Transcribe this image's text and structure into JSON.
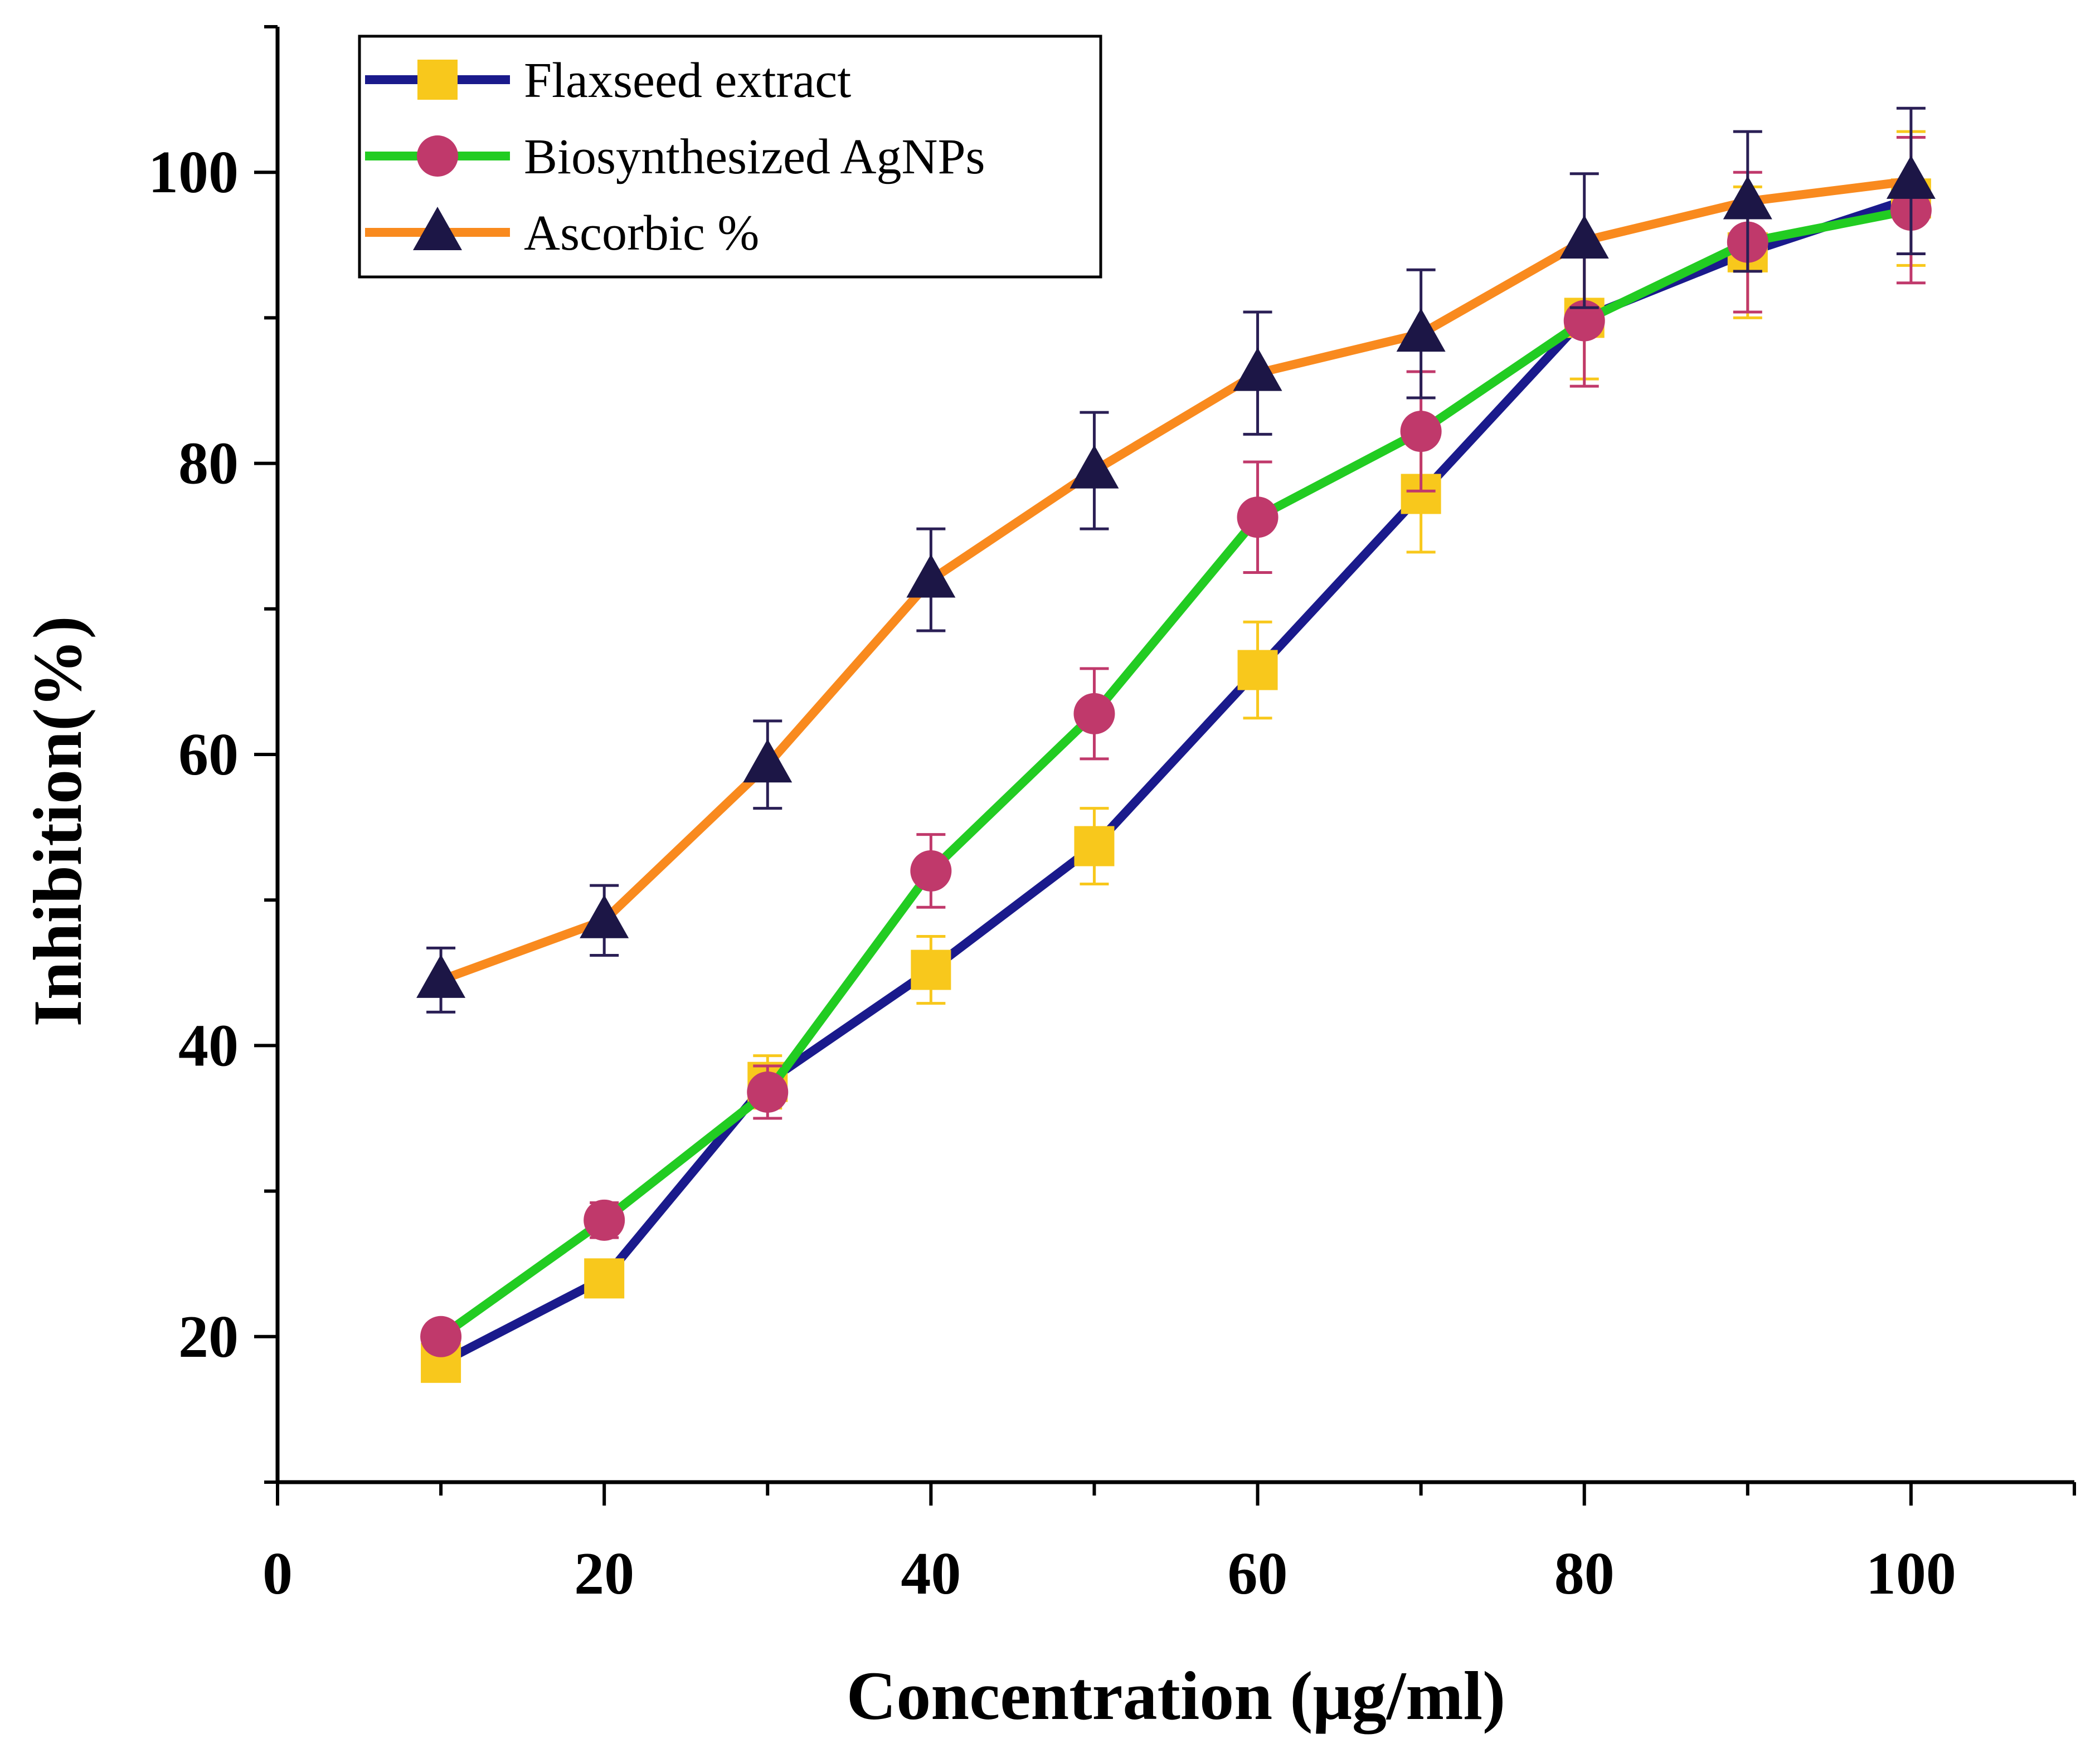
{
  "chart_data": {
    "type": "line",
    "xlabel": "Concentration (μg/ml)",
    "ylabel": "Inhibition(%)",
    "xlim": [
      0,
      110
    ],
    "ylim": [
      10,
      110
    ],
    "x_ticks": [
      0,
      20,
      40,
      60,
      80,
      100
    ],
    "y_ticks": [
      20,
      40,
      60,
      80,
      100
    ],
    "grid": false,
    "legend_position": "top-left",
    "x": [
      10,
      20,
      30,
      40,
      50,
      60,
      70,
      80,
      90,
      100
    ],
    "series": [
      {
        "name": "Flaxseed extract",
        "line_color": "#1a1a8c",
        "marker": "square",
        "marker_color": "#f8c81c",
        "error_color": "#f8c81c",
        "values": [
          18.2,
          24.0,
          37.5,
          45.2,
          53.7,
          65.8,
          77.9,
          90.0,
          94.5,
          98.2
        ],
        "errors": [
          0.8,
          1.0,
          1.8,
          2.3,
          2.6,
          3.3,
          4.0,
          4.2,
          4.5,
          4.6
        ]
      },
      {
        "name": "Biosynthesized AgNPs",
        "line_color": "#22cc22",
        "marker": "circle",
        "marker_color": "#c0396b",
        "error_color": "#c0396b",
        "values": [
          20.0,
          28.0,
          36.8,
          52.0,
          62.8,
          76.3,
          82.2,
          89.8,
          95.2,
          97.4
        ],
        "errors": [
          0.8,
          1.2,
          1.8,
          2.5,
          3.1,
          3.8,
          4.1,
          4.5,
          4.8,
          5.0
        ]
      },
      {
        "name": "Ascorbic %",
        "line_color": "#f98a1e",
        "marker": "triangle",
        "marker_color": "#1c1646",
        "error_color": "#2a1f55",
        "values": [
          44.5,
          48.6,
          59.3,
          72.0,
          79.5,
          86.2,
          88.9,
          95.3,
          98.0,
          99.4
        ],
        "errors": [
          2.2,
          2.4,
          3.0,
          3.5,
          4.0,
          4.2,
          4.4,
          4.6,
          4.8,
          5.0
        ]
      }
    ]
  }
}
